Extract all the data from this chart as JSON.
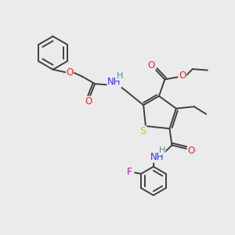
{
  "bg_color": "#ebebeb",
  "atom_colors": {
    "C": "#404040",
    "H": "#4a9090",
    "N": "#3030ff",
    "O": "#ff2020",
    "S": "#c8c820",
    "F": "#cc00cc"
  },
  "bond_color": "#404040",
  "bond_width": 1.4,
  "font_size": 8.5,
  "fig_size": [
    3.0,
    3.0
  ],
  "dpi": 100
}
